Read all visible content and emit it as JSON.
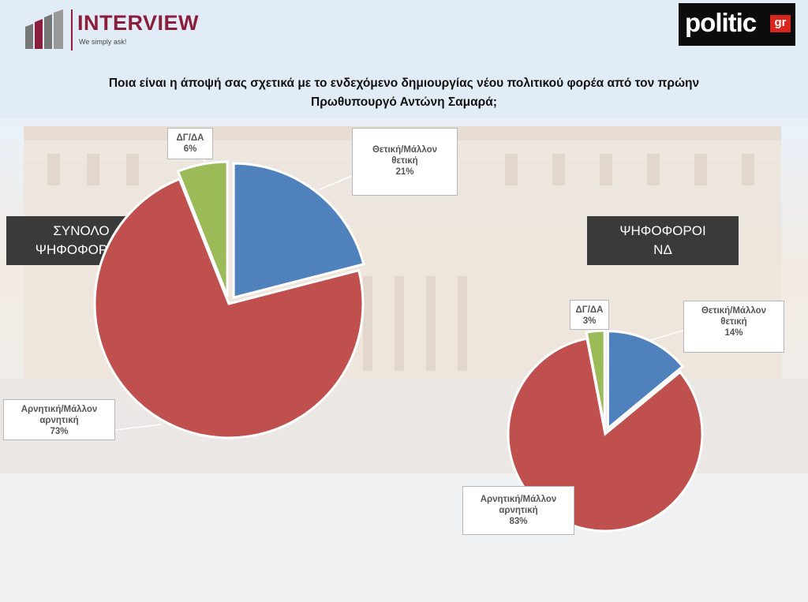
{
  "header": {
    "brand_name": "INTERVIEW",
    "brand_tagline": "We simply ask!",
    "partner_logo_word": "politic",
    "partner_logo_badge": "gr"
  },
  "question": {
    "line1": "Ποια είναι η άποψή σας σχετικά με το ενδεχόμενο δημιουργίας νέου πολιτικού φορέα από τον πρώην",
    "line2": "Πρωθυπουργό Αντώνη Σαμαρά;"
  },
  "colors": {
    "positive": "#4f81bd",
    "negative": "#c0504d",
    "dk": "#9bbb59",
    "brand": "#8a1e3c"
  },
  "chart_data": [
    {
      "type": "pie",
      "title": "ΣΥΝΟΛΟ ΨΗΦΟΦΟΡΩΝ",
      "title_lines": [
        "ΣΥΝΟΛΟ",
        "ΨΗΦΟΦΟΡΩΝ"
      ],
      "slices": [
        {
          "label_lines": [
            "Θετική/Μάλλον",
            "θετική"
          ],
          "pct_text": "21%",
          "value": 21,
          "color": "#4f81bd",
          "exploded": true
        },
        {
          "label_lines": [
            "Αρνητική/Μάλλον",
            "αρνητική"
          ],
          "pct_text": "73%",
          "value": 73,
          "color": "#c0504d",
          "exploded": false
        },
        {
          "label_lines": [
            "ΔΓ/ΔΑ"
          ],
          "pct_text": "6%",
          "value": 6,
          "color": "#9bbb59",
          "exploded": true
        }
      ]
    },
    {
      "type": "pie",
      "title": "ΨΗΦΟΦΟΡΟΙ ΝΔ",
      "title_lines": [
        "ΨΗΦΟΦΟΡΟΙ",
        "ΝΔ"
      ],
      "slices": [
        {
          "label_lines": [
            "Θετική/Μάλλον",
            "θετική"
          ],
          "pct_text": "14%",
          "value": 14,
          "color": "#4f81bd",
          "exploded": true
        },
        {
          "label_lines": [
            "Αρνητική/Μάλλον",
            "αρνητική"
          ],
          "pct_text": "83%",
          "value": 83,
          "color": "#c0504d",
          "exploded": false
        },
        {
          "label_lines": [
            "ΔΓ/ΔΑ"
          ],
          "pct_text": "3%",
          "value": 3,
          "color": "#9bbb59",
          "exploded": true
        }
      ]
    }
  ]
}
